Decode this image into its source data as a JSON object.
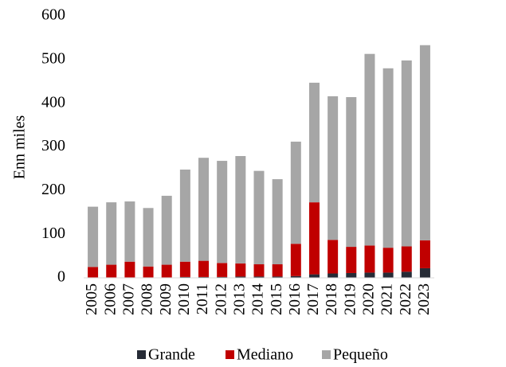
{
  "chart_data": {
    "type": "stacked_bar",
    "y_axis_label": "Enn miles",
    "categories": [
      "2005",
      "2006",
      "2007",
      "2008",
      "2009",
      "2010",
      "2011",
      "2012",
      "2013",
      "2014",
      "2015",
      "2016",
      "2017",
      "2018",
      "2019",
      "2020",
      "2021",
      "2022",
      "2023"
    ],
    "series": [
      {
        "name": "Grande",
        "color": "#262b36",
        "values": [
          1,
          1,
          1,
          1,
          1,
          2,
          2,
          2,
          3,
          3,
          3,
          4,
          8,
          10,
          11,
          12,
          12,
          14,
          22
        ]
      },
      {
        "name": "Mediano",
        "color": "#c00000",
        "values": [
          24,
          29,
          36,
          25,
          29,
          35,
          37,
          32,
          30,
          28,
          28,
          74,
          165,
          77,
          60,
          62,
          57,
          58,
          64
        ]
      },
      {
        "name": "Pequeño",
        "color": "#a6a6a6",
        "values": [
          138,
          143,
          138,
          134,
          158,
          211,
          236,
          234,
          246,
          214,
          195,
          234,
          274,
          329,
          343,
          439,
          411,
          426,
          447
        ]
      }
    ],
    "ylim": [
      0,
      600
    ],
    "yticks": [
      0,
      100,
      200,
      300,
      400,
      500,
      600
    ],
    "grid": false,
    "legend": "bottom"
  }
}
